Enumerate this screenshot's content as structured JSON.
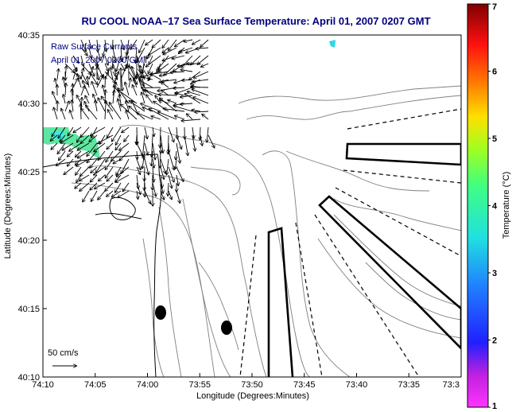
{
  "title": "RU COOL  NOAA–17  Sea Surface Temperature:  April 01, 2007 0207 GMT",
  "legend": {
    "line1": "Raw Surface Currents",
    "line2": "April 01, 2007 0200 GMT"
  },
  "scale_label": "50 cm/s",
  "colors": {
    "title": "#000080",
    "legend_text": "#000080",
    "contour": "#808080",
    "coast": "#000000"
  },
  "map": {
    "xlabel": "Longitude (Degrees:Minutes)",
    "ylabel": "Latitude (Degrees:Minutes)",
    "x_ticks": [
      "74:10",
      "74:05",
      "74:00",
      "73:55",
      "73:50",
      "73:45",
      "73:40",
      "73:35",
      "73:3"
    ],
    "y_ticks": [
      "40:35",
      "40:30",
      "40:25",
      "40:20",
      "40:15",
      "40:10"
    ]
  },
  "colorbar": {
    "label": "Temperature (°C)",
    "ticks": [
      "7",
      "6",
      "5",
      "4",
      "3",
      "2",
      "1"
    ],
    "min": 1,
    "max": 7
  }
}
